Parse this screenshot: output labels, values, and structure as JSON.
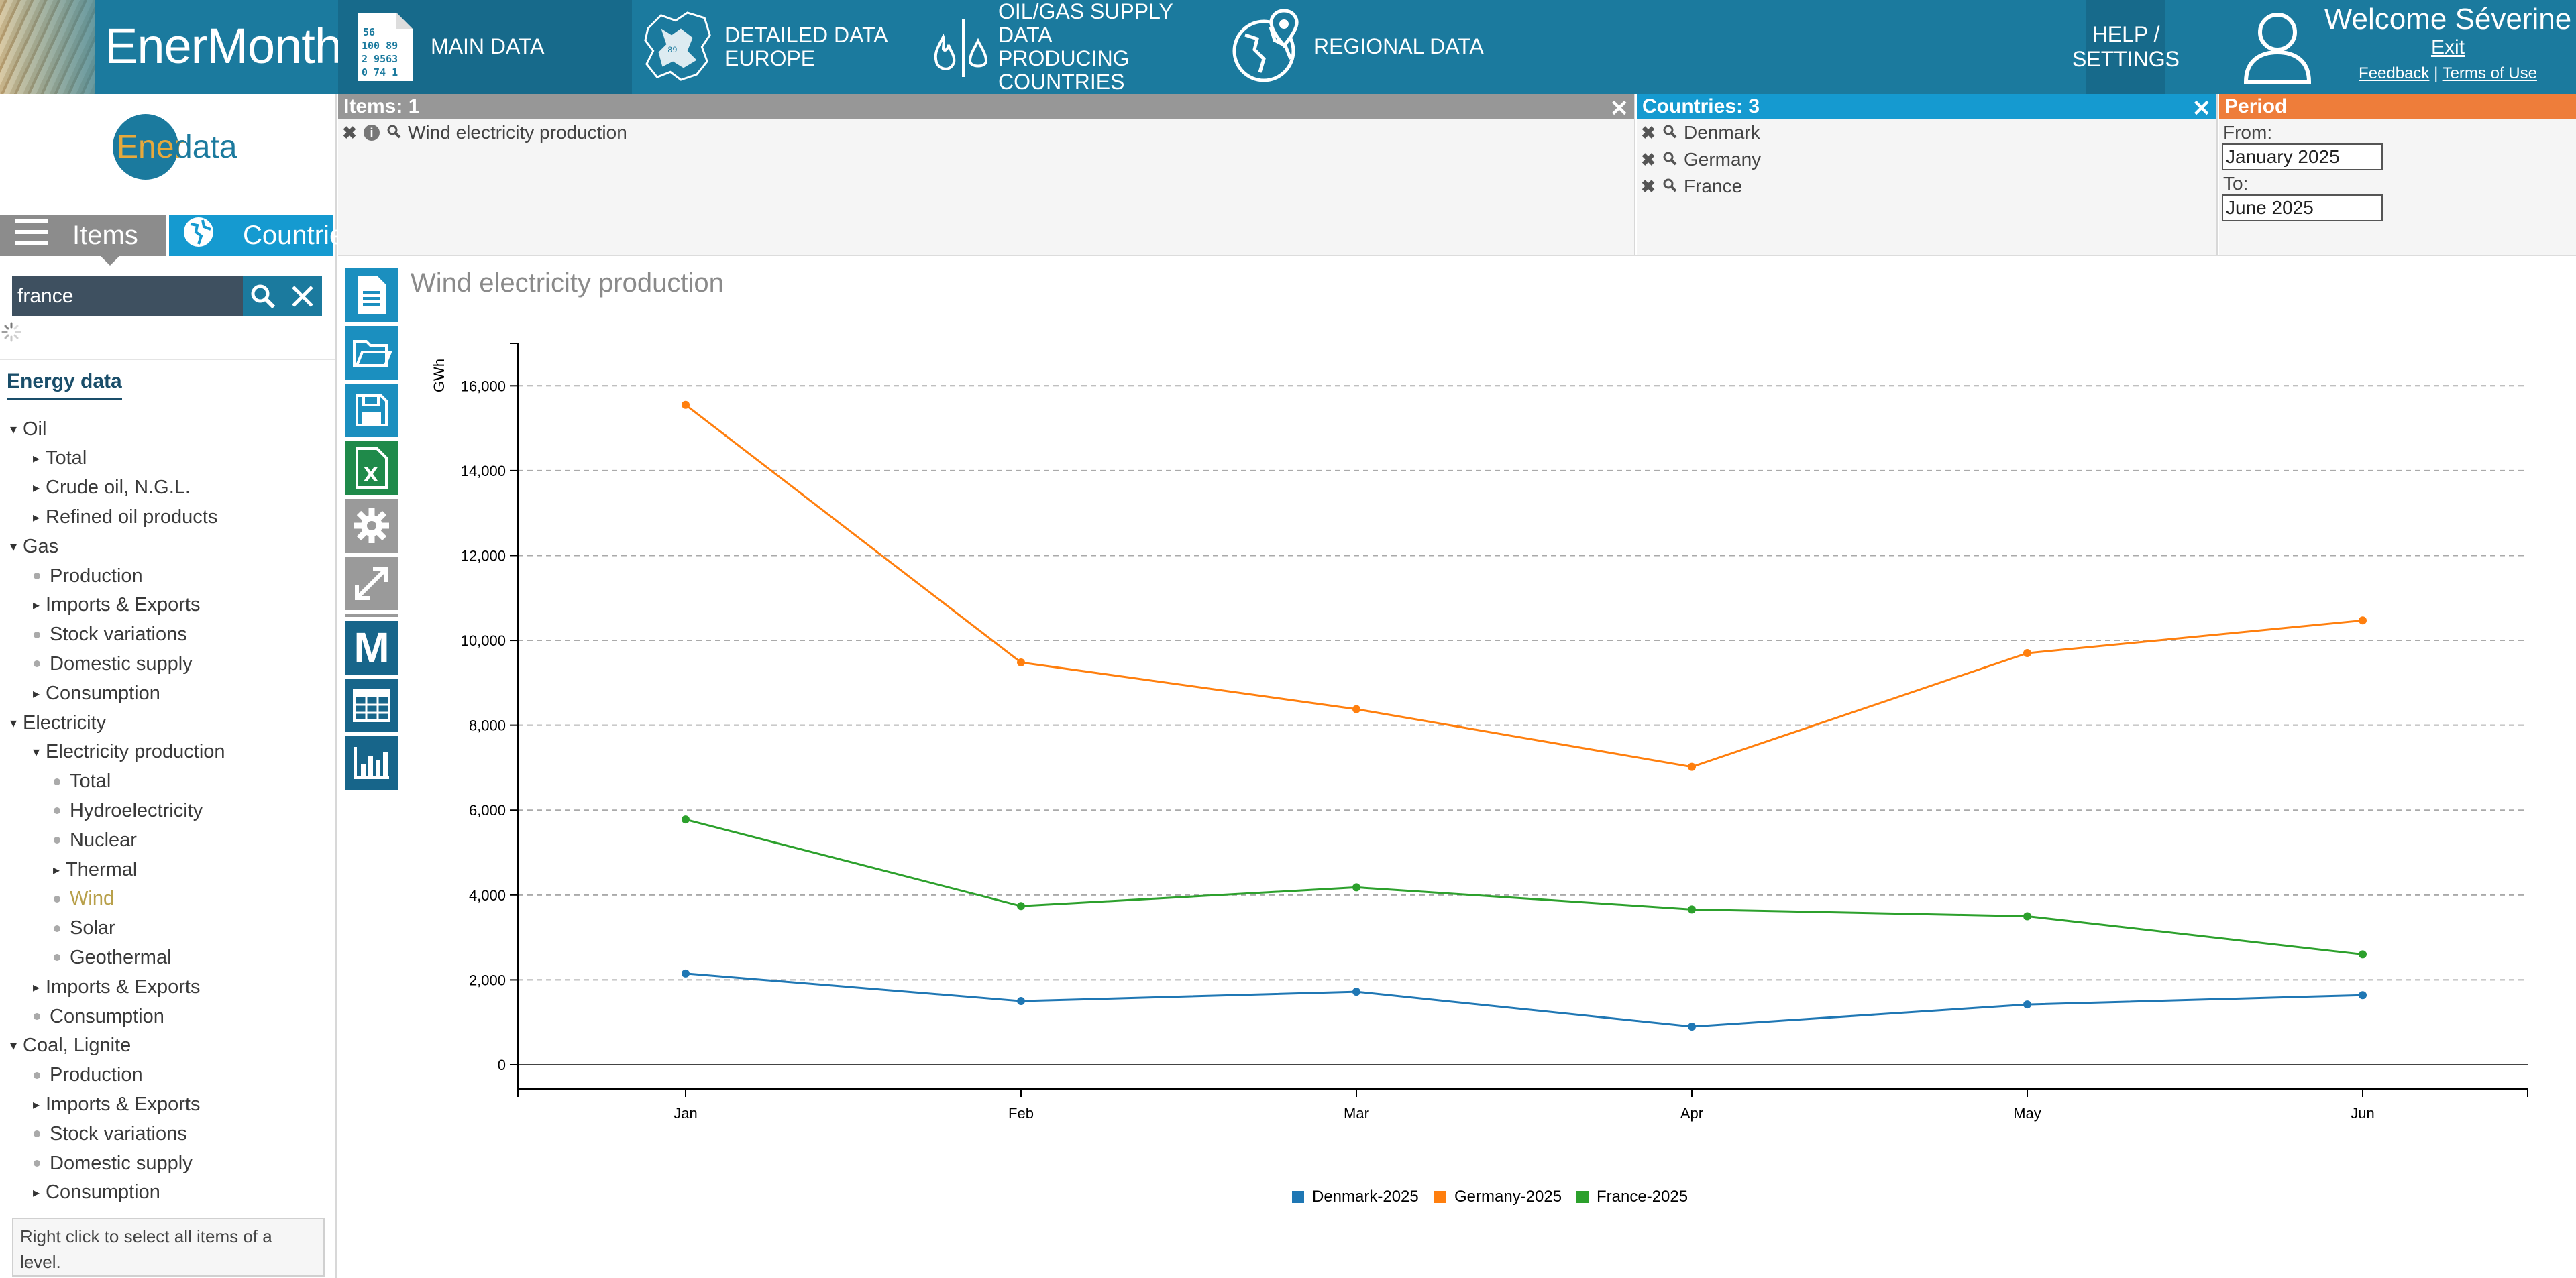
{
  "header": {
    "app_title": "EnerMonthly",
    "nav": [
      {
        "label_line1": "MAIN DATA",
        "label_line2": "",
        "icon": "document-numbers-icon"
      },
      {
        "label_line1": "DETAILED DATA EUROPE",
        "label_line2": "",
        "icon": "europe-map-icon"
      },
      {
        "label_line1": "OIL/GAS SUPPLY DATA",
        "label_line2": "PRODUCING COUNTRIES",
        "icon": "flame-drop-icon"
      },
      {
        "label_line1": "REGIONAL DATA",
        "label_line2": "",
        "icon": "globe-pin-icon"
      }
    ],
    "help_line1": "HELP /",
    "help_line2": "SETTINGS",
    "welcome": "Welcome Séverine",
    "exit": "Exit",
    "feedback": "Feedback",
    "separator": "|",
    "terms": "Terms of Use",
    "brand_color": "#1b7a9e"
  },
  "sidebar": {
    "logo_prefix": "Ener",
    "logo_suffix": "data",
    "tab_items": "Items",
    "tab_countries": "Countries",
    "search_value": "france",
    "tree_heading": "Energy data",
    "tree": [
      {
        "label": "Oil",
        "level": 0,
        "marker": "open"
      },
      {
        "label": "Total",
        "level": 1,
        "marker": "closed"
      },
      {
        "label": "Crude oil, N.G.L.",
        "level": 1,
        "marker": "closed"
      },
      {
        "label": "Refined oil products",
        "level": 1,
        "marker": "closed"
      },
      {
        "label": "Gas",
        "level": 0,
        "marker": "open"
      },
      {
        "label": "Production",
        "level": 1,
        "marker": "dot"
      },
      {
        "label": "Imports & Exports",
        "level": 1,
        "marker": "closed"
      },
      {
        "label": "Stock variations",
        "level": 1,
        "marker": "dot"
      },
      {
        "label": "Domestic supply",
        "level": 1,
        "marker": "dot"
      },
      {
        "label": "Consumption",
        "level": 1,
        "marker": "closed"
      },
      {
        "label": "Electricity",
        "level": 0,
        "marker": "open"
      },
      {
        "label": "Electricity production",
        "level": 1,
        "marker": "open"
      },
      {
        "label": "Total",
        "level": 2,
        "marker": "dot"
      },
      {
        "label": "Hydroelectricity",
        "level": 2,
        "marker": "dot"
      },
      {
        "label": "Nuclear",
        "level": 2,
        "marker": "dot"
      },
      {
        "label": "Thermal",
        "level": 2,
        "marker": "closed"
      },
      {
        "label": "Wind",
        "level": 2,
        "marker": "dot",
        "selected": true
      },
      {
        "label": "Solar",
        "level": 2,
        "marker": "dot"
      },
      {
        "label": "Geothermal",
        "level": 2,
        "marker": "dot"
      },
      {
        "label": "Imports & Exports",
        "level": 1,
        "marker": "closed"
      },
      {
        "label": "Consumption",
        "level": 1,
        "marker": "dot"
      },
      {
        "label": "Coal, Lignite",
        "level": 0,
        "marker": "open"
      },
      {
        "label": "Production",
        "level": 1,
        "marker": "dot"
      },
      {
        "label": "Imports & Exports",
        "level": 1,
        "marker": "closed"
      },
      {
        "label": "Stock variations",
        "level": 1,
        "marker": "dot"
      },
      {
        "label": "Domestic supply",
        "level": 1,
        "marker": "dot"
      },
      {
        "label": "Consumption",
        "level": 1,
        "marker": "closed"
      }
    ],
    "hint": "Right click to select all items of a level."
  },
  "panels": {
    "items_title": "Items: 1",
    "items": [
      "Wind electricity production"
    ],
    "countries_title": "Countries: 3",
    "countries": [
      "Denmark",
      "Germany",
      "France"
    ],
    "period_title": "Period",
    "from_label": "From:",
    "from_value": "January 2025",
    "to_label": "To:",
    "to_value": "June 2025",
    "close_glyph": "✕"
  },
  "toolbar": {
    "tools": [
      "new-document-icon",
      "open-folder-icon",
      "save-icon",
      "excel-export-icon",
      "settings-gear-icon",
      "expand-icon",
      "monthly-m-icon",
      "table-view-icon",
      "chart-view-icon"
    ],
    "m_glyph": "M"
  },
  "chart_title": "Wind electricity production",
  "chart_data": {
    "type": "line",
    "title": "Wind electricity production",
    "ylabel": "GWh",
    "xlabel": "",
    "categories": [
      "Jan",
      "Feb",
      "Mar",
      "Apr",
      "May",
      "Jun"
    ],
    "ylim": [
      0,
      17000
    ],
    "yticks": [
      0,
      2000,
      4000,
      6000,
      8000,
      10000,
      12000,
      14000,
      16000
    ],
    "ytick_labels": [
      "0",
      "2,000",
      "4,000",
      "6,000",
      "8,000",
      "10,000",
      "12,000",
      "14,000",
      "16,000"
    ],
    "grid": "horizontal dashed",
    "legend": "bottom",
    "series": [
      {
        "name": "Denmark-2025",
        "color": "#1f77b4",
        "values": [
          2150,
          1500,
          1720,
          900,
          1420,
          1640
        ]
      },
      {
        "name": "Germany-2025",
        "color": "#ff7f0e",
        "values": [
          15550,
          9480,
          8380,
          7020,
          9700,
          10470
        ]
      },
      {
        "name": "France-2025",
        "color": "#2ca02c",
        "values": [
          5780,
          3740,
          4180,
          3660,
          3500,
          2600
        ]
      }
    ]
  }
}
